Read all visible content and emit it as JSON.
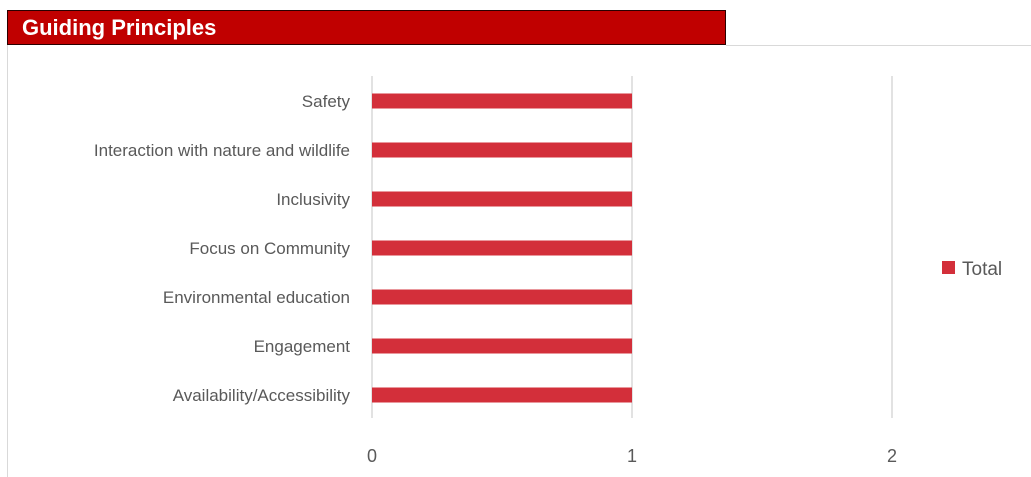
{
  "header": {
    "title": "Guiding Principles"
  },
  "chart_data": {
    "type": "bar",
    "orientation": "horizontal",
    "categories": [
      "Safety",
      "Interaction with nature and wildlife",
      "Inclusivity",
      "Focus on Community",
      "Environmental education",
      "Engagement",
      "Availability/Accessibility"
    ],
    "series": [
      {
        "name": "Total",
        "values": [
          1,
          1,
          1,
          1,
          1,
          1,
          1
        ],
        "color": "#d32f3a"
      }
    ],
    "xlim": [
      0,
      2
    ],
    "xticks": [
      "0",
      "1",
      "2"
    ],
    "grid": "vertical",
    "legend_position": "right"
  }
}
